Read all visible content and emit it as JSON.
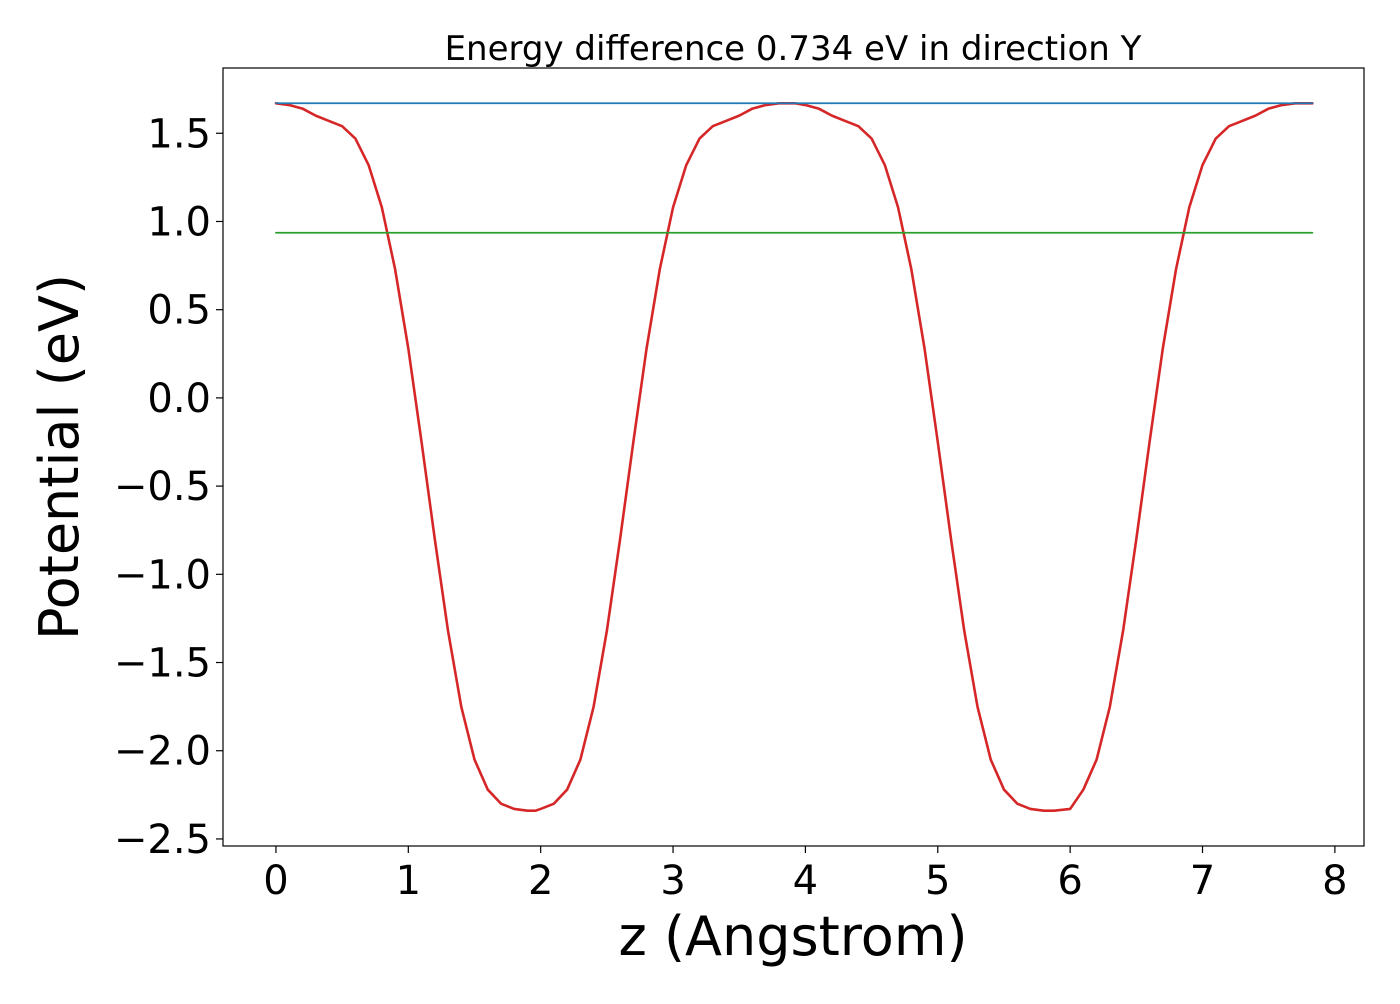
{
  "chart_data": {
    "type": "line",
    "title": "Energy difference 0.734 eV in direction Y",
    "xlabel": "z (Angstrom)",
    "ylabel": "Potential (eV)",
    "xlim": [
      -0.4,
      8.22
    ],
    "ylim": [
      -2.54,
      1.87
    ],
    "xticks": [
      0,
      1,
      2,
      3,
      4,
      5,
      6,
      7,
      8
    ],
    "xtick_labels": [
      "0",
      "1",
      "2",
      "3",
      "4",
      "5",
      "6",
      "7",
      "8"
    ],
    "yticks": [
      1.5,
      1.0,
      0.5,
      0.0,
      -0.5,
      -1.0,
      -1.5,
      -2.0,
      -2.5
    ],
    "ytick_labels": [
      "1.5",
      "1.0",
      "0.5",
      "0.0",
      "−0.5",
      "−1.0",
      "−1.5",
      "−2.0",
      "−2.5"
    ],
    "grid": false,
    "legend": false,
    "series": [
      {
        "color": "#d62728",
        "style": "curve",
        "x": [
          0,
          0.1,
          0.2,
          0.3,
          0.4,
          0.5,
          0.6,
          0.7,
          0.8,
          0.9,
          1.0,
          1.1,
          1.2,
          1.3,
          1.4,
          1.5,
          1.6,
          1.7,
          1.8,
          1.9,
          1.96,
          2.0,
          2.1,
          2.2,
          2.3,
          2.4,
          2.5,
          2.6,
          2.7,
          2.8,
          2.9,
          3.0,
          3.1,
          3.2,
          3.3,
          3.4,
          3.5,
          3.6,
          3.7,
          3.8,
          3.92,
          4.0,
          4.1,
          4.2,
          4.3,
          4.4,
          4.5,
          4.6,
          4.7,
          4.8,
          4.9,
          5.0,
          5.1,
          5.2,
          5.3,
          5.4,
          5.5,
          5.6,
          5.7,
          5.8,
          5.88,
          6.0,
          6.1,
          6.2,
          6.3,
          6.4,
          6.5,
          6.6,
          6.7,
          6.8,
          6.9,
          7.0,
          7.1,
          7.2,
          7.3,
          7.4,
          7.5,
          7.6,
          7.7,
          7.83
        ],
        "y": [
          1.67,
          1.66,
          1.64,
          1.6,
          1.57,
          1.54,
          1.47,
          1.32,
          1.08,
          0.73,
          0.28,
          -0.25,
          -0.8,
          -1.32,
          -1.75,
          -2.05,
          -2.22,
          -2.3,
          -2.33,
          -2.34,
          -2.34,
          -2.33,
          -2.3,
          -2.22,
          -2.05,
          -1.75,
          -1.32,
          -0.8,
          -0.25,
          0.28,
          0.73,
          1.08,
          1.32,
          1.47,
          1.54,
          1.57,
          1.6,
          1.64,
          1.66,
          1.67,
          1.67,
          1.66,
          1.64,
          1.6,
          1.57,
          1.54,
          1.47,
          1.32,
          1.08,
          0.73,
          0.28,
          -0.25,
          -0.8,
          -1.32,
          -1.75,
          -2.05,
          -2.22,
          -2.3,
          -2.33,
          -2.34,
          -2.34,
          -2.33,
          -2.22,
          -2.05,
          -1.75,
          -1.32,
          -0.8,
          -0.25,
          0.28,
          0.73,
          1.08,
          1.32,
          1.47,
          1.54,
          1.57,
          1.6,
          1.64,
          1.66,
          1.67,
          1.67
        ]
      },
      {
        "color": "#1f77b4",
        "style": "hline",
        "x": [
          0,
          7.83
        ],
        "y": [
          1.67,
          1.67
        ]
      },
      {
        "color": "#2ca02c",
        "style": "hline",
        "x": [
          0,
          7.83
        ],
        "y": [
          0.936,
          0.936
        ]
      }
    ]
  }
}
